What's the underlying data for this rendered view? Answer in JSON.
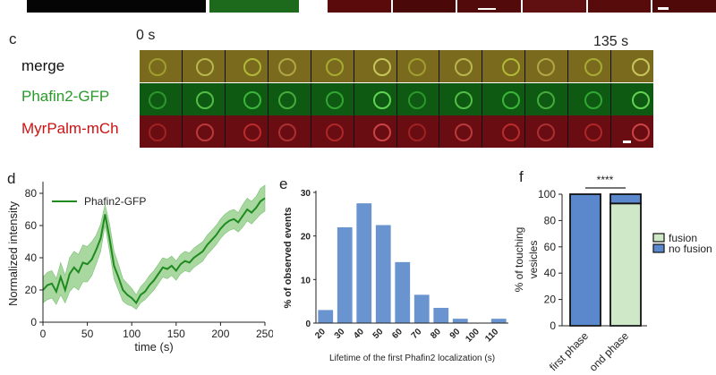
{
  "panel_c": {
    "letter": "c",
    "time_start": "0 s",
    "time_end": "135 s",
    "rows": [
      {
        "label": "merge",
        "color": "#111111"
      },
      {
        "label": "Phafin2-GFP",
        "color": "#2a9a2a"
      },
      {
        "label": "MyrPalm-mCh",
        "color": "#cc1111"
      }
    ],
    "frames": 12
  },
  "panel_d": {
    "letter": "d"
  },
  "panel_e": {
    "letter": "e"
  },
  "panel_f": {
    "letter": "f",
    "significance": "****"
  },
  "chart_data": [
    {
      "type": "line",
      "title": "",
      "xlabel": "time (s)",
      "ylabel": "Normalized intensity",
      "xlim": [
        0,
        250
      ],
      "ylim": [
        0,
        85
      ],
      "xticks": [
        0,
        50,
        100,
        150,
        200,
        250
      ],
      "yticks": [
        0,
        20,
        40,
        60,
        80
      ],
      "series": [
        {
          "name": "Phafin2-GFP",
          "color": "#1f8a1f",
          "band_color": "#a8d8a0",
          "x": [
            0,
            5,
            10,
            15,
            20,
            25,
            30,
            35,
            40,
            45,
            50,
            55,
            60,
            65,
            70,
            75,
            80,
            85,
            90,
            95,
            100,
            105,
            110,
            115,
            120,
            125,
            130,
            135,
            140,
            145,
            150,
            155,
            160,
            165,
            170,
            175,
            180,
            185,
            190,
            195,
            200,
            205,
            210,
            215,
            220,
            225,
            230,
            235,
            240,
            245,
            250
          ],
          "y": [
            20,
            23,
            24,
            19,
            28,
            20,
            30,
            34,
            31,
            37,
            36,
            39,
            45,
            52,
            67,
            52,
            35,
            28,
            20,
            17,
            15,
            12,
            17,
            19,
            23,
            26,
            30,
            34,
            33,
            35,
            32,
            36,
            38,
            37,
            40,
            42,
            44,
            48,
            51,
            54,
            58,
            61,
            63,
            64,
            62,
            66,
            70,
            68,
            71,
            75,
            77
          ],
          "lower": [
            12,
            14,
            15,
            11,
            17,
            12,
            19,
            22,
            20,
            25,
            25,
            29,
            36,
            44,
            60,
            44,
            27,
            20,
            13,
            11,
            10,
            8,
            12,
            14,
            17,
            20,
            24,
            28,
            27,
            29,
            26,
            30,
            32,
            31,
            34,
            36,
            38,
            42,
            45,
            48,
            52,
            55,
            57,
            58,
            56,
            59,
            63,
            61,
            64,
            67,
            69
          ],
          "upper": [
            28,
            31,
            32,
            27,
            37,
            29,
            40,
            44,
            42,
            48,
            47,
            50,
            54,
            61,
            73,
            61,
            44,
            36,
            27,
            24,
            21,
            17,
            22,
            25,
            29,
            32,
            36,
            40,
            39,
            41,
            38,
            42,
            44,
            43,
            46,
            48,
            50,
            54,
            57,
            60,
            64,
            67,
            69,
            70,
            68,
            73,
            77,
            75,
            78,
            83,
            85
          ]
        }
      ]
    },
    {
      "type": "bar",
      "title": "",
      "xlabel": "Lifetime of the first Phafin2 localization (s)",
      "ylabel": "% of observed events",
      "ylim": [
        0,
        30
      ],
      "yticks": [
        0,
        10,
        20,
        30
      ],
      "categories": [
        "20",
        "30",
        "40",
        "50",
        "60",
        "70",
        "80",
        "90",
        "100",
        "110"
      ],
      "values": [
        3,
        22,
        27.5,
        22.5,
        14,
        6.5,
        3.5,
        1,
        0,
        1
      ],
      "color": "#6a94cf"
    },
    {
      "type": "bar",
      "stacked": true,
      "title": "",
      "ylabel": "% of touching vesicles",
      "ylim": [
        0,
        100
      ],
      "yticks": [
        0,
        20,
        40,
        60,
        80,
        100
      ],
      "categories": [
        "first phase",
        "second phase"
      ],
      "category_tick_labels": [
        "first phase",
        "ond phase"
      ],
      "series": [
        {
          "name": "fusion",
          "color": "#cfe8c8",
          "values": [
            0,
            93
          ]
        },
        {
          "name": "no fusion",
          "color": "#5b88cc",
          "values": [
            100,
            7
          ]
        }
      ]
    }
  ]
}
